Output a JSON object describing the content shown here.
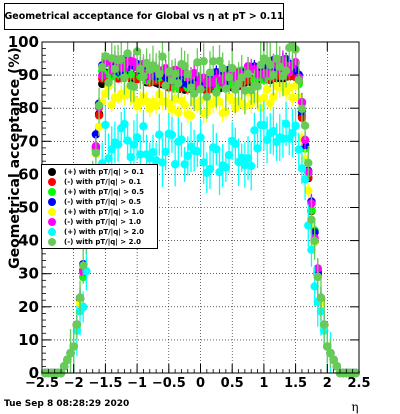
{
  "chart_data": {
    "type": "scatter",
    "title": "Geometrical acceptance for Global vs  η at pT > 0.11",
    "xlabel": "η",
    "ylabel": "Geometrical acceptance (%)",
    "xlim": [
      -2.5,
      2.5
    ],
    "ylim": [
      0,
      100
    ],
    "x_ticks": [
      "−2.5",
      "−2",
      "−1.5",
      "−1",
      "−0.5",
      "0",
      "0.5",
      "1",
      "1.5",
      "2",
      "2.5"
    ],
    "y_ticks": [
      "0",
      "10",
      "20",
      "30",
      "40",
      "50",
      "60",
      "70",
      "80",
      "90",
      "100"
    ],
    "grid": true,
    "legend_position": "left-middle",
    "series": [
      {
        "name": "(+) with pT/|q| > 0.1",
        "color": "#000000",
        "plateau": 88,
        "spread": 1,
        "err": 1
      },
      {
        "name": "(-) with pT/|q| > 0.1",
        "color": "#ff0000",
        "plateau": 88,
        "spread": 1,
        "err": 1
      },
      {
        "name": "(+) with pT/|q| > 0.5",
        "color": "#00ff00",
        "plateau": 90,
        "spread": 3,
        "err": 2
      },
      {
        "name": "(-) with pT/|q| > 0.5",
        "color": "#0000ff",
        "plateau": 91,
        "spread": 2,
        "err": 2
      },
      {
        "name": "(+) with pT/|q| > 1.0",
        "color": "#ffff00",
        "plateau": 82,
        "spread": 3,
        "err": 3
      },
      {
        "name": "(-) with pT/|q| > 1.0",
        "color": "#ff00ff",
        "plateau": 91,
        "spread": 2,
        "err": 3
      },
      {
        "name": "(+) with pT/|q| > 2.0",
        "color": "#00ffff",
        "plateau": 68,
        "spread": 6,
        "err": 7
      },
      {
        "name": "(-) with pT/|q| > 2.0",
        "color": "#66cc55",
        "plateau": 91,
        "spread": 6,
        "err": 7
      }
    ]
  },
  "footer": {
    "timestamp": "Tue Sep  8 08:28:29 2020"
  }
}
